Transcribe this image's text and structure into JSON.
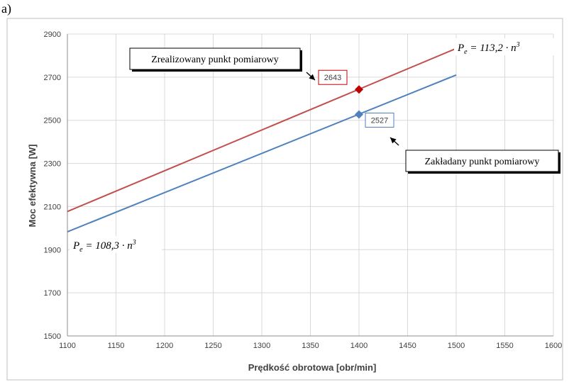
{
  "figure_label": "a)",
  "colors": {
    "red_series": "#c0504d",
    "blue_series": "#4f81bd",
    "grid": "#d9d9d9",
    "marker_red": "#c00000",
    "marker_blue": "#4f81bd"
  },
  "chart_data": {
    "type": "line",
    "xlabel": "Prędkość obrotowa [obr/min]",
    "ylabel": "Moc efektywna [W]",
    "xlim": [
      1100,
      1600
    ],
    "ylim": [
      1500,
      2900
    ],
    "x_ticks": [
      "1100",
      "1150",
      "1200",
      "1250",
      "1300",
      "1350",
      "1400",
      "1450",
      "1500",
      "1550",
      "1600"
    ],
    "y_ticks": [
      "1500",
      "1700",
      "1900",
      "2100",
      "2300",
      "2500",
      "2700",
      "2900"
    ],
    "grid": true,
    "series": [
      {
        "x": [
          1100,
          1500
        ],
        "y": [
          2077,
          2833
        ],
        "color": "#c0504d"
      },
      {
        "x": [
          1100,
          1500
        ],
        "y": [
          1983,
          2710
        ],
        "color": "#4f81bd"
      }
    ],
    "points": [
      {
        "x": 1400,
        "y": 2643,
        "label": "2643",
        "color": "#c00000"
      },
      {
        "x": 1400,
        "y": 2527,
        "label": "2527",
        "color": "#4f81bd"
      }
    ],
    "annotations": {
      "realized": "Zrealizowany punkt pomiarowy",
      "assumed": "Zakładany punkt pomiarowy",
      "formula_red": {
        "lhs": "P",
        "sub": "e",
        "eq": " = 113,2 · n",
        "sup": "3"
      },
      "formula_blue": {
        "lhs": "P",
        "sub": "e",
        "eq": " = 108,3 · n",
        "sup": "3"
      }
    }
  }
}
